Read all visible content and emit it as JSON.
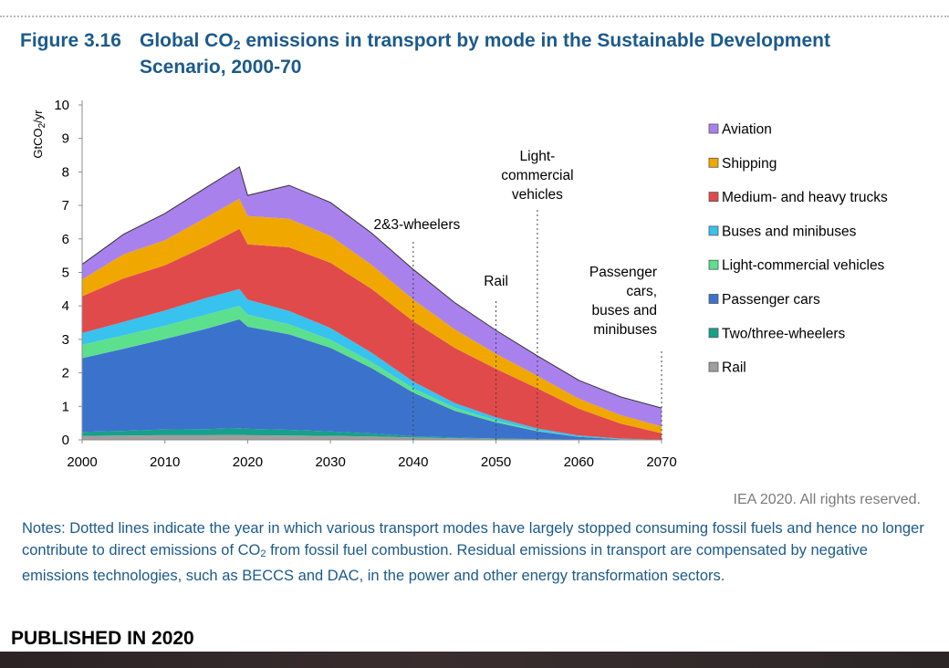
{
  "figure": {
    "number": "Figure 3.16",
    "title_part1": "Global CO",
    "title_sub": "2",
    "title_part2": " emissions in transport by mode in the Sustainable Development",
    "title_line2": "Scenario, 2000-70"
  },
  "chart_data": {
    "type": "area",
    "stacked": true,
    "ylabel": "GtCO2/yr",
    "ylim": [
      0,
      10
    ],
    "yticks": [
      0,
      1,
      2,
      3,
      4,
      5,
      6,
      7,
      8,
      9,
      10
    ],
    "xlim": [
      2000,
      2070
    ],
    "xticks": [
      2000,
      2010,
      2020,
      2030,
      2040,
      2050,
      2060,
      2070
    ],
    "x": [
      2000,
      2005,
      2010,
      2015,
      2019,
      2020,
      2025,
      2030,
      2035,
      2040,
      2045,
      2050,
      2055,
      2060,
      2065,
      2070
    ],
    "series": [
      {
        "name": "Rail",
        "color": "#9e9e9e",
        "values": [
          0.12,
          0.13,
          0.14,
          0.14,
          0.15,
          0.14,
          0.13,
          0.12,
          0.1,
          0.07,
          0.05,
          0.03,
          0.02,
          0.01,
          0.0,
          0.0
        ]
      },
      {
        "name": "Two/three-wheelers",
        "color": "#17a08a",
        "values": [
          0.12,
          0.14,
          0.17,
          0.18,
          0.2,
          0.19,
          0.17,
          0.13,
          0.09,
          0.04,
          0.02,
          0.01,
          0.0,
          0.0,
          0.0,
          0.0
        ]
      },
      {
        "name": "Passenger cars",
        "color": "#3b73cc",
        "values": [
          2.2,
          2.45,
          2.7,
          3.0,
          3.25,
          3.05,
          2.85,
          2.5,
          1.95,
          1.3,
          0.8,
          0.48,
          0.24,
          0.08,
          0.02,
          0.0
        ]
      },
      {
        "name": "Light-commercial vehicles",
        "color": "#5ce08e",
        "values": [
          0.4,
          0.4,
          0.4,
          0.42,
          0.4,
          0.36,
          0.3,
          0.24,
          0.18,
          0.13,
          0.09,
          0.06,
          0.02,
          0.0,
          0.0,
          0.0
        ]
      },
      {
        "name": "Buses and minibuses",
        "color": "#38c2ee",
        "values": [
          0.35,
          0.4,
          0.45,
          0.5,
          0.5,
          0.45,
          0.4,
          0.35,
          0.28,
          0.2,
          0.14,
          0.09,
          0.06,
          0.04,
          0.02,
          0.0
        ]
      },
      {
        "name": "Medium- and heavy trucks",
        "color": "#e04a4a",
        "values": [
          1.1,
          1.3,
          1.35,
          1.55,
          1.8,
          1.65,
          1.9,
          1.95,
          1.9,
          1.8,
          1.65,
          1.45,
          1.2,
          0.8,
          0.45,
          0.2
        ]
      },
      {
        "name": "Shipping",
        "color": "#f0a800",
        "values": [
          0.5,
          0.72,
          0.75,
          0.85,
          0.9,
          0.84,
          0.85,
          0.8,
          0.72,
          0.65,
          0.55,
          0.45,
          0.37,
          0.3,
          0.25,
          0.2
        ]
      },
      {
        "name": "Aviation",
        "color": "#a981ec",
        "values": [
          0.45,
          0.6,
          0.8,
          0.9,
          0.95,
          0.62,
          1.0,
          1.0,
          0.95,
          0.9,
          0.8,
          0.7,
          0.6,
          0.55,
          0.55,
          0.55
        ]
      }
    ],
    "legend": [
      "Aviation",
      "Shipping",
      "Medium- and heavy trucks",
      "Buses and minibuses",
      "Light-commercial vehicles",
      "Passenger cars",
      "Two/three-wheelers",
      "Rail"
    ],
    "legend_position": "right",
    "annotations": [
      {
        "year": 2040,
        "lines": [
          "2&3-wheelers"
        ]
      },
      {
        "year": 2050,
        "lines": [
          "Rail"
        ]
      },
      {
        "year": 2055,
        "lines": [
          "Light-",
          "commercial",
          "vehicles"
        ]
      },
      {
        "year": 2070,
        "lines": [
          "Passenger",
          "cars,",
          "buses and",
          "minibuses"
        ]
      }
    ]
  },
  "copyright": "IEA 2020. All rights reserved.",
  "notes": {
    "part1": "Notes: Dotted lines indicate the year in which various transport modes have largely stopped consuming fossil fuels and hence no longer contribute to direct emissions of CO",
    "sub": "2",
    "part2": " from fossil fuel combustion. Residual emissions in transport are compensated by negative emissions technologies, such as BECCS and DAC, in the power and other energy transformation sectors."
  },
  "published": "PUBLISHED IN 2020"
}
